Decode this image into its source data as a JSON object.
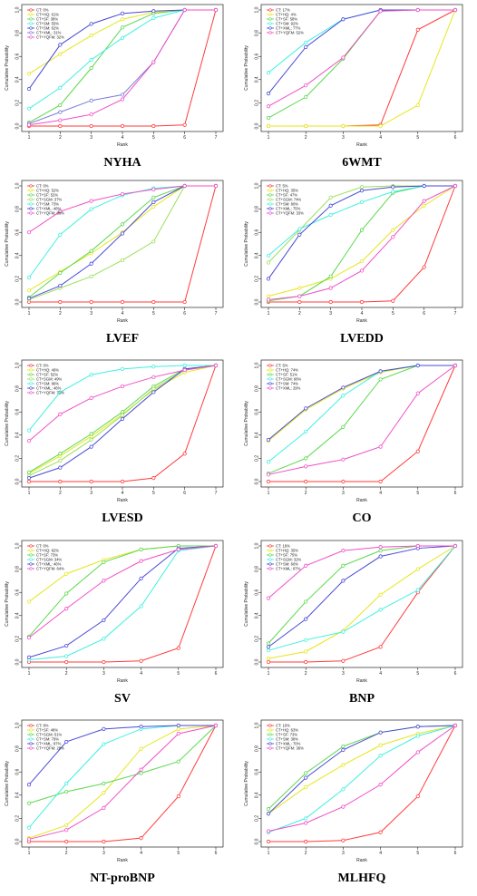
{
  "chart_data": [
    {
      "type": "line",
      "title": "NYHA",
      "xlabel": "Rank",
      "ylabel": "Cumulative Probability",
      "xlim": [
        1,
        7
      ],
      "ylim": [
        0,
        1
      ],
      "x": [
        1,
        2,
        3,
        4,
        5,
        6,
        7
      ],
      "yticks": [
        "0.0",
        "0.2",
        "0.4",
        "0.6",
        "0.8",
        "1.0"
      ],
      "series": [
        {
          "name": "CT: 0%",
          "color": "#ff3b3b",
          "values": [
            0.0,
            0.0,
            0.0,
            0.0,
            0.0,
            0.01,
            1.0
          ]
        },
        {
          "name": "CT+HQ: 61%",
          "color": "#e6e61a",
          "values": [
            0.45,
            0.62,
            0.78,
            0.92,
            0.98,
            1.0,
            1.0
          ]
        },
        {
          "name": "CT+SF: 38%",
          "color": "#5bd84d",
          "values": [
            0.03,
            0.18,
            0.5,
            0.85,
            0.97,
            1.0,
            1.0
          ]
        },
        {
          "name": "CT+SM: 55%",
          "color": "#3ff0e0",
          "values": [
            0.15,
            0.33,
            0.57,
            0.76,
            0.93,
            1.0,
            1.0
          ]
        },
        {
          "name": "CT+SM: 62%",
          "color": "#4a4ad8",
          "values": [
            0.32,
            0.7,
            0.88,
            0.97,
            0.99,
            1.0,
            1.0
          ]
        },
        {
          "name": "CT+XML: 31%",
          "color": "#7a7ad8",
          "values": [
            0.02,
            0.12,
            0.22,
            0.27,
            0.55,
            1.0,
            1.0
          ]
        },
        {
          "name": "CT+YQFM: 32%",
          "color": "#f04fc8",
          "values": [
            0.01,
            0.05,
            0.1,
            0.23,
            0.55,
            1.0,
            1.0
          ]
        }
      ]
    },
    {
      "type": "line",
      "title": "6WMT",
      "xlabel": "Rank",
      "ylabel": "Cumulative Probability",
      "xlim": [
        1,
        6
      ],
      "ylim": [
        0,
        1
      ],
      "x": [
        1,
        2,
        3,
        4,
        5,
        6
      ],
      "yticks": [
        "0.0",
        "0.2",
        "0.4",
        "0.6",
        "0.8",
        "1.0"
      ],
      "series": [
        {
          "name": "CT: 17%",
          "color": "#ff3b3b",
          "values": [
            0.0,
            0.0,
            0.0,
            0.01,
            0.83,
            1.0
          ]
        },
        {
          "name": "CT+HQ: 4%",
          "color": "#e6e61a",
          "values": [
            0.0,
            0.0,
            0.0,
            0.0,
            0.18,
            1.0
          ]
        },
        {
          "name": "CT+SF: 58%",
          "color": "#5bd84d",
          "values": [
            0.07,
            0.25,
            0.58,
            0.99,
            1.0,
            1.0
          ]
        },
        {
          "name": "CT+SM: 92%",
          "color": "#3ff0e0",
          "values": [
            0.46,
            0.72,
            0.92,
            1.0,
            1.0,
            1.0
          ]
        },
        {
          "name": "CT+XML: 77%",
          "color": "#4a4ad8",
          "values": [
            0.28,
            0.68,
            0.92,
            1.0,
            1.0,
            1.0
          ]
        },
        {
          "name": "CT+YQFM: 52%",
          "color": "#f04fc8",
          "values": [
            0.17,
            0.35,
            0.59,
            0.99,
            1.0,
            1.0
          ]
        }
      ]
    },
    {
      "type": "line",
      "title": "LVEF",
      "xlabel": "Rank",
      "ylabel": "Cumulative Probability",
      "xlim": [
        1,
        7
      ],
      "ylim": [
        0,
        1
      ],
      "x": [
        1,
        2,
        3,
        4,
        5,
        6,
        7
      ],
      "yticks": [
        "0.0",
        "0.2",
        "0.4",
        "0.6",
        "0.8",
        "1.0"
      ],
      "series": [
        {
          "name": "CT: 0%",
          "color": "#ff3b3b",
          "values": [
            0.0,
            0.0,
            0.0,
            0.0,
            0.0,
            0.0,
            1.0
          ]
        },
        {
          "name": "CT+HQ: 52%",
          "color": "#e6e61a",
          "values": [
            0.1,
            0.26,
            0.42,
            0.6,
            0.82,
            1.0,
            1.0
          ]
        },
        {
          "name": "CT+SF: 52%",
          "color": "#5bd84d",
          "values": [
            0.04,
            0.25,
            0.44,
            0.67,
            0.9,
            1.0,
            1.0
          ]
        },
        {
          "name": "CT+SGM: 37%",
          "color": "#9be05a",
          "values": [
            0.02,
            0.12,
            0.22,
            0.36,
            0.52,
            1.0,
            1.0
          ]
        },
        {
          "name": "CT+SM: 73%",
          "color": "#3ff0e0",
          "values": [
            0.21,
            0.58,
            0.8,
            0.92,
            0.98,
            1.0,
            1.0
          ]
        },
        {
          "name": "CT+XML: 48%",
          "color": "#4a4ad8",
          "values": [
            0.03,
            0.14,
            0.33,
            0.59,
            0.86,
            1.0,
            1.0
          ]
        },
        {
          "name": "CT+YQFM: 88%",
          "color": "#f04fc8",
          "values": [
            0.6,
            0.78,
            0.87,
            0.93,
            0.97,
            1.0,
            1.0
          ]
        }
      ]
    },
    {
      "type": "line",
      "title": "LVEDD",
      "xlabel": "Rank",
      "ylabel": "Cumulative Probability",
      "xlim": [
        1,
        7
      ],
      "ylim": [
        0,
        1
      ],
      "x": [
        1,
        2,
        3,
        4,
        5,
        6,
        7
      ],
      "yticks": [
        "0.0",
        "0.2",
        "0.4",
        "0.6",
        "0.8",
        "1.0"
      ],
      "series": [
        {
          "name": "CT: 5%",
          "color": "#ff3b3b",
          "values": [
            0.0,
            0.0,
            0.0,
            0.0,
            0.01,
            0.3,
            1.0
          ]
        },
        {
          "name": "CT+HQ: 35%",
          "color": "#e6e61a",
          "values": [
            0.05,
            0.12,
            0.2,
            0.35,
            0.62,
            0.83,
            1.0
          ]
        },
        {
          "name": "CT+SF: 47%",
          "color": "#5bd84d",
          "values": [
            0.01,
            0.05,
            0.22,
            0.62,
            0.94,
            1.0,
            1.0
          ]
        },
        {
          "name": "CT+SGM: 74%",
          "color": "#9be05a",
          "values": [
            0.34,
            0.62,
            0.9,
            0.99,
            1.0,
            1.0,
            1.0
          ]
        },
        {
          "name": "CT+SM: 80%",
          "color": "#3ff0e0",
          "values": [
            0.4,
            0.63,
            0.75,
            0.86,
            0.95,
            1.0,
            1.0
          ]
        },
        {
          "name": "CT+XML: 75%",
          "color": "#4a4ad8",
          "values": [
            0.2,
            0.58,
            0.83,
            0.96,
            0.99,
            1.0,
            1.0
          ]
        },
        {
          "name": "CT+YQFM: 33%",
          "color": "#f04fc8",
          "values": [
            0.02,
            0.05,
            0.12,
            0.27,
            0.56,
            0.87,
            1.0
          ]
        }
      ]
    },
    {
      "type": "line",
      "title": "LVESD",
      "xlabel": "Rank",
      "ylabel": "Cumulative Probability",
      "xlim": [
        1,
        7
      ],
      "ylim": [
        0,
        1
      ],
      "x": [
        1,
        2,
        3,
        4,
        5,
        6,
        7
      ],
      "yticks": [
        "0.0",
        "0.2",
        "0.4",
        "0.6",
        "0.8",
        "1.0"
      ],
      "series": [
        {
          "name": "CT: 0%",
          "color": "#ff3b3b",
          "values": [
            0.0,
            0.0,
            0.0,
            0.0,
            0.03,
            0.24,
            1.0
          ]
        },
        {
          "name": "CT+HQ: 46%",
          "color": "#e6e61a",
          "values": [
            0.07,
            0.22,
            0.39,
            0.58,
            0.79,
            0.94,
            1.0
          ]
        },
        {
          "name": "CT+SF: 52%",
          "color": "#5bd84d",
          "values": [
            0.08,
            0.24,
            0.41,
            0.6,
            0.82,
            0.97,
            1.0
          ]
        },
        {
          "name": "CT+SGM: 49%",
          "color": "#9be05a",
          "values": [
            0.05,
            0.18,
            0.36,
            0.57,
            0.8,
            0.96,
            1.0
          ]
        },
        {
          "name": "CT+SM: 86%",
          "color": "#3ff0e0",
          "values": [
            0.44,
            0.77,
            0.92,
            0.97,
            0.99,
            1.0,
            1.0
          ]
        },
        {
          "name": "CT+XML: 46%",
          "color": "#4a4ad8",
          "values": [
            0.03,
            0.12,
            0.3,
            0.54,
            0.77,
            0.97,
            1.0
          ]
        },
        {
          "name": "CT+YQFM: 72%",
          "color": "#f04fc8",
          "values": [
            0.35,
            0.58,
            0.72,
            0.82,
            0.9,
            0.96,
            1.0
          ]
        }
      ]
    },
    {
      "type": "line",
      "title": "CO",
      "xlabel": "Rank",
      "ylabel": "Cumulative Probability",
      "xlim": [
        1,
        6
      ],
      "ylim": [
        0,
        1
      ],
      "x": [
        1,
        2,
        3,
        4,
        5,
        6
      ],
      "yticks": [
        "0.0",
        "0.2",
        "0.4",
        "0.6",
        "0.8",
        "1.0"
      ],
      "series": [
        {
          "name": "CT: 5%",
          "color": "#ff3b3b",
          "values": [
            0.0,
            0.0,
            0.0,
            0.0,
            0.26,
            1.0
          ]
        },
        {
          "name": "CT+HQ: 74%",
          "color": "#e6e61a",
          "values": [
            0.35,
            0.62,
            0.8,
            0.94,
            1.0,
            1.0
          ]
        },
        {
          "name": "CT+SF: 51%",
          "color": "#5bd84d",
          "values": [
            0.07,
            0.2,
            0.47,
            0.88,
            1.0,
            1.0
          ]
        },
        {
          "name": "CT+SGM: 66%",
          "color": "#3ff0e0",
          "values": [
            0.17,
            0.43,
            0.74,
            0.95,
            1.0,
            1.0
          ]
        },
        {
          "name": "CT+SM: 74%",
          "color": "#4a4ad8",
          "values": [
            0.36,
            0.63,
            0.81,
            0.95,
            1.0,
            1.0
          ]
        },
        {
          "name": "CT+XML: 29%",
          "color": "#f04fc8",
          "values": [
            0.06,
            0.13,
            0.19,
            0.3,
            0.76,
            1.0
          ]
        }
      ]
    },
    {
      "type": "line",
      "title": "SV",
      "xlabel": "Rank",
      "ylabel": "Cumulative Probability",
      "xlim": [
        1,
        6
      ],
      "ylim": [
        0,
        1
      ],
      "x": [
        1,
        2,
        3,
        4,
        5,
        6
      ],
      "yticks": [
        "0.0",
        "0.2",
        "0.4",
        "0.6",
        "0.8",
        "1.0"
      ],
      "series": [
        {
          "name": "CT: 0%",
          "color": "#ff3b3b",
          "values": [
            0.0,
            0.0,
            0.0,
            0.01,
            0.12,
            1.0
          ]
        },
        {
          "name": "CT+HQ: 82%",
          "color": "#e6e61a",
          "values": [
            0.52,
            0.76,
            0.88,
            0.97,
            1.0,
            1.0
          ]
        },
        {
          "name": "CT+SF: 73%",
          "color": "#5bd84d",
          "values": [
            0.22,
            0.59,
            0.86,
            0.97,
            1.0,
            1.0
          ]
        },
        {
          "name": "CT+SGM: 34%",
          "color": "#3ff0e0",
          "values": [
            0.02,
            0.05,
            0.2,
            0.48,
            0.96,
            1.0
          ]
        },
        {
          "name": "CT+XML: 46%",
          "color": "#4a4ad8",
          "values": [
            0.04,
            0.14,
            0.36,
            0.72,
            0.98,
            1.0
          ]
        },
        {
          "name": "CT+YQFM: 64%",
          "color": "#f04fc8",
          "values": [
            0.21,
            0.46,
            0.7,
            0.87,
            0.97,
            1.0
          ]
        }
      ]
    },
    {
      "type": "line",
      "title": "BNP",
      "xlabel": "Rank",
      "ylabel": "Cumulative Probability",
      "xlim": [
        1,
        6
      ],
      "ylim": [
        0,
        1
      ],
      "x": [
        1,
        2,
        3,
        4,
        5,
        6
      ],
      "yticks": [
        "0.0",
        "0.2",
        "0.4",
        "0.6",
        "0.8",
        "1.0"
      ],
      "series": [
        {
          "name": "CT: 16%",
          "color": "#ff3b3b",
          "values": [
            0.0,
            0.0,
            0.01,
            0.13,
            0.6,
            1.0
          ]
        },
        {
          "name": "CT+HQ: 35%",
          "color": "#e6e61a",
          "values": [
            0.03,
            0.09,
            0.27,
            0.58,
            0.8,
            1.0
          ]
        },
        {
          "name": "CT+SF: 75%",
          "color": "#5bd84d",
          "values": [
            0.16,
            0.52,
            0.83,
            0.96,
            1.0,
            1.0
          ]
        },
        {
          "name": "CT+SGM: 32%",
          "color": "#3ff0e0",
          "values": [
            0.1,
            0.19,
            0.26,
            0.45,
            0.62,
            1.0
          ]
        },
        {
          "name": "CT+SM: 60%",
          "color": "#4a4ad8",
          "values": [
            0.13,
            0.37,
            0.7,
            0.91,
            0.98,
            1.0
          ]
        },
        {
          "name": "CT+XML: 87%",
          "color": "#f04fc8",
          "values": [
            0.55,
            0.83,
            0.96,
            0.99,
            1.0,
            1.0
          ]
        }
      ]
    },
    {
      "type": "line",
      "title": "NT-proBNP",
      "xlabel": "Rank",
      "ylabel": "Cumulative Probability",
      "xlim": [
        1,
        6
      ],
      "ylim": [
        0,
        1
      ],
      "x": [
        1,
        2,
        3,
        4,
        5,
        6
      ],
      "yticks": [
        "0.0",
        "0.2",
        "0.4",
        "0.6",
        "0.8",
        "1.0"
      ],
      "series": [
        {
          "name": "CT: 8%",
          "color": "#ff3b3b",
          "values": [
            0.0,
            0.0,
            0.0,
            0.03,
            0.39,
            1.0
          ]
        },
        {
          "name": "CT+SF: 48%",
          "color": "#e6e61a",
          "values": [
            0.03,
            0.14,
            0.42,
            0.8,
            0.97,
            1.0
          ]
        },
        {
          "name": "CT+SGM: 51%",
          "color": "#5bd84d",
          "values": [
            0.33,
            0.43,
            0.5,
            0.59,
            0.69,
            1.0
          ]
        },
        {
          "name": "CT+SM: 79%",
          "color": "#3ff0e0",
          "values": [
            0.12,
            0.5,
            0.84,
            0.97,
            1.0,
            1.0
          ]
        },
        {
          "name": "CT+XML: 87%",
          "color": "#4a4ad8",
          "values": [
            0.49,
            0.86,
            0.97,
            0.99,
            1.0,
            1.0
          ]
        },
        {
          "name": "CT+YQFM: 28%",
          "color": "#f04fc8",
          "values": [
            0.02,
            0.1,
            0.29,
            0.62,
            0.93,
            1.0
          ]
        }
      ]
    },
    {
      "type": "line",
      "title": "MLHFQ",
      "xlabel": "Rank",
      "ylabel": "Cumulative Probability",
      "xlim": [
        1,
        6
      ],
      "ylim": [
        0,
        1
      ],
      "x": [
        1,
        2,
        3,
        4,
        5,
        6
      ],
      "yticks": [
        "0.0",
        "0.2",
        "0.4",
        "0.6",
        "0.8",
        "1.0"
      ],
      "series": [
        {
          "name": "CT: 10%",
          "color": "#ff3b3b",
          "values": [
            0.0,
            0.0,
            0.01,
            0.08,
            0.39,
            1.0
          ]
        },
        {
          "name": "CT+HQ: 63%",
          "color": "#e6e61a",
          "values": [
            0.24,
            0.47,
            0.66,
            0.83,
            0.93,
            1.0
          ]
        },
        {
          "name": "CT+SF: 73%",
          "color": "#5bd84d",
          "values": [
            0.28,
            0.59,
            0.82,
            0.94,
            0.99,
            1.0
          ]
        },
        {
          "name": "CT+SM: 38%",
          "color": "#3ff0e0",
          "values": [
            0.08,
            0.2,
            0.45,
            0.74,
            0.91,
            1.0
          ]
        },
        {
          "name": "CT+XML: 70%",
          "color": "#4a4ad8",
          "values": [
            0.24,
            0.55,
            0.79,
            0.94,
            0.99,
            1.0
          ]
        },
        {
          "name": "CT+YQFM: 36%",
          "color": "#f04fc8",
          "values": [
            0.09,
            0.16,
            0.3,
            0.49,
            0.77,
            1.0
          ]
        }
      ]
    }
  ]
}
